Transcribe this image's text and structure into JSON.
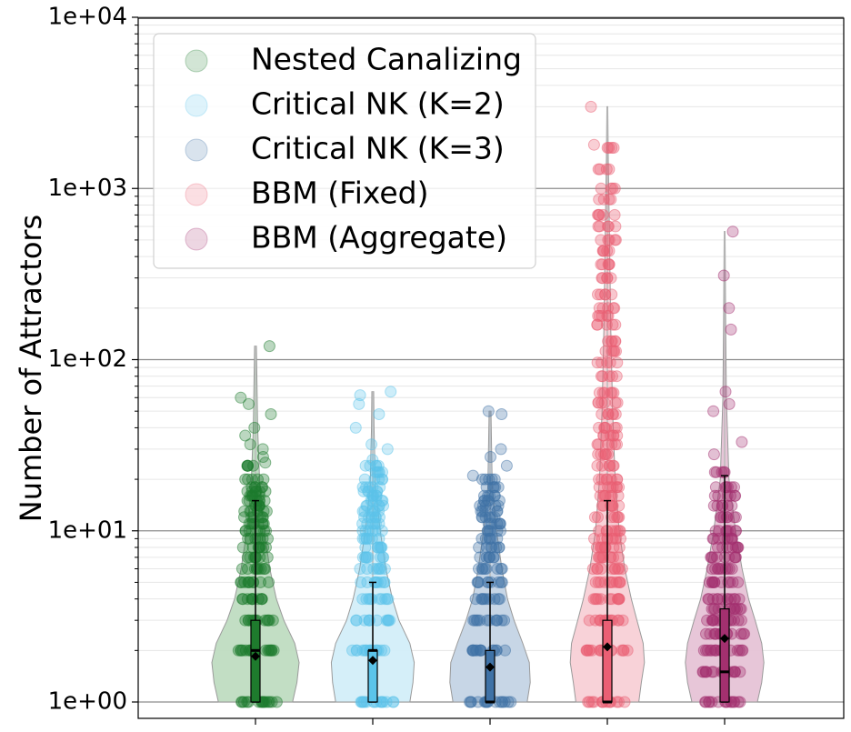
{
  "chart_data": {
    "type": "violin",
    "ylabel": "Number of Attractors",
    "yscale": "log",
    "ylim": [
      0.9,
      10000
    ],
    "y_tick_labels": [
      "1e+00",
      "1e+01",
      "1e+02",
      "1e+03",
      "1e+04"
    ],
    "y_tick_values": [
      1,
      10,
      100,
      1000,
      10000
    ],
    "grid": "major and minor horizontal",
    "legend_position": "top-left",
    "series": [
      {
        "name": "Nested Canalizing",
        "color": "#1e7b2d",
        "fill": "#bfdcc1",
        "whisker": [
          1,
          15
        ],
        "q1": 1,
        "median": 2,
        "q3": 3,
        "mean": 1.85,
        "max": 120,
        "discrete_values": [
          1,
          2,
          3,
          4,
          5,
          6,
          7,
          8,
          9,
          10,
          11,
          12,
          13,
          14,
          15,
          16,
          17,
          18,
          20,
          24
        ],
        "outliers": [
          25,
          27,
          30,
          32,
          36,
          40,
          48,
          55,
          60,
          120
        ],
        "violin_shape": [
          [
            1,
            0.85
          ],
          [
            1.3,
            0.95
          ],
          [
            1.7,
            1.0
          ],
          [
            2.2,
            0.9
          ],
          [
            3,
            0.65
          ],
          [
            4,
            0.48
          ],
          [
            6,
            0.33
          ],
          [
            10,
            0.2
          ],
          [
            18,
            0.1
          ],
          [
            40,
            0.05
          ],
          [
            120,
            0.02
          ]
        ]
      },
      {
        "name": "Critical NK (K=2)",
        "color": "#5bc4ea",
        "fill": "#d3eef9",
        "whisker": [
          1,
          5
        ],
        "q1": 1,
        "median": 2,
        "q3": 2,
        "mean": 1.75,
        "max": 65,
        "discrete_values": [
          1,
          2,
          3,
          4,
          5,
          6,
          7,
          8,
          9,
          10,
          11,
          12,
          13,
          14,
          15,
          16,
          17,
          18,
          20,
          22,
          24
        ],
        "outliers": [
          26,
          30,
          32,
          40,
          48,
          55,
          62,
          65
        ],
        "violin_shape": [
          [
            1,
            0.85
          ],
          [
            1.3,
            0.92
          ],
          [
            1.7,
            0.95
          ],
          [
            2.2,
            0.85
          ],
          [
            3,
            0.6
          ],
          [
            4,
            0.45
          ],
          [
            6,
            0.3
          ],
          [
            10,
            0.17
          ],
          [
            18,
            0.06
          ],
          [
            40,
            0.03
          ],
          [
            65,
            0.02
          ]
        ]
      },
      {
        "name": "Critical NK (K=3)",
        "color": "#3f72a6",
        "fill": "#c4d4e5",
        "whisker": [
          1,
          5
        ],
        "q1": 1,
        "median": 1,
        "q3": 2,
        "mean": 1.6,
        "max": 50,
        "discrete_values": [
          1,
          2,
          3,
          4,
          5,
          6,
          7,
          8,
          9,
          10,
          11,
          12,
          13,
          14,
          15,
          16,
          18,
          20
        ],
        "outliers": [
          21,
          24,
          27,
          30,
          48,
          50
        ],
        "violin_shape": [
          [
            1,
            0.85
          ],
          [
            1.3,
            0.92
          ],
          [
            1.7,
            0.9
          ],
          [
            2.2,
            0.75
          ],
          [
            3,
            0.55
          ],
          [
            4,
            0.4
          ],
          [
            6,
            0.27
          ],
          [
            10,
            0.15
          ],
          [
            18,
            0.05
          ],
          [
            50,
            0.02
          ]
        ]
      },
      {
        "name": "BBM (Fixed)",
        "color": "#ea5f74",
        "fill": "#f8d0d6",
        "whisker": [
          1,
          15
        ],
        "q1": 1,
        "median": 1,
        "q3": 3,
        "mean": 2.1,
        "max": 3000,
        "discrete_values": [
          1,
          2,
          3,
          4,
          5,
          6,
          7,
          8,
          9,
          10,
          12,
          14,
          16,
          18,
          20,
          24,
          28,
          32,
          36,
          40,
          48,
          56,
          64,
          80,
          96,
          112,
          128,
          160,
          180,
          200,
          240,
          300,
          360,
          432,
          500,
          600,
          700,
          864,
          1000,
          1296,
          1728
        ],
        "outliers": [
          1800,
          3000
        ],
        "violin_shape": [
          [
            1,
            0.72
          ],
          [
            1.3,
            0.78
          ],
          [
            1.7,
            0.85
          ],
          [
            2.2,
            0.82
          ],
          [
            3,
            0.68
          ],
          [
            4,
            0.55
          ],
          [
            6,
            0.4
          ],
          [
            10,
            0.27
          ],
          [
            20,
            0.18
          ],
          [
            50,
            0.12
          ],
          [
            150,
            0.08
          ],
          [
            500,
            0.05
          ],
          [
            1500,
            0.02
          ],
          [
            3000,
            0.01
          ]
        ]
      },
      {
        "name": "BBM (Aggregate)",
        "color": "#a3306f",
        "fill": "#e6c3d6",
        "whisker": [
          1,
          21
        ],
        "q1": 1,
        "median": 1.5,
        "q3": 3.5,
        "mean": 2.35,
        "max": 560,
        "discrete_values": [
          1,
          1.5,
          2,
          2.5,
          3,
          3.5,
          4,
          5,
          6,
          7,
          8,
          9,
          10,
          12,
          14,
          16,
          18,
          22
        ],
        "outliers": [
          28,
          33,
          50,
          55,
          65,
          150,
          200,
          310,
          560
        ],
        "violin_shape": [
          [
            1,
            0.75
          ],
          [
            1.3,
            0.85
          ],
          [
            1.7,
            0.9
          ],
          [
            2.2,
            0.85
          ],
          [
            3,
            0.7
          ],
          [
            4,
            0.55
          ],
          [
            6,
            0.4
          ],
          [
            10,
            0.25
          ],
          [
            20,
            0.1
          ],
          [
            60,
            0.04
          ],
          [
            200,
            0.02
          ],
          [
            560,
            0.01
          ]
        ]
      }
    ]
  }
}
